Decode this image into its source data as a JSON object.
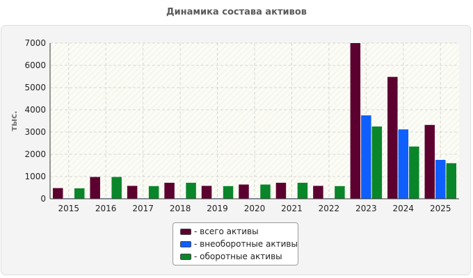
{
  "chart_data": {
    "type": "bar",
    "title": "Динамика состава активов",
    "ylabel": "тыс.",
    "xlabel": "",
    "ylim": [
      0,
      7000
    ],
    "yticks": [
      0,
      1000,
      2000,
      3000,
      4000,
      5000,
      6000,
      7000
    ],
    "grid": true,
    "legend_position": "bottom-center",
    "categories": [
      "2015",
      "2016",
      "2017",
      "2018",
      "2019",
      "2020",
      "2021",
      "2022",
      "2023",
      "2024",
      "2025"
    ],
    "series": [
      {
        "name": "- всего активы",
        "color": "#5c0030",
        "values": [
          480,
          980,
          580,
          720,
          580,
          640,
          720,
          580,
          7000,
          5480,
          3320
        ]
      },
      {
        "name": "- внеоборотные активы",
        "color": "#0f5fff",
        "values": [
          20,
          20,
          20,
          20,
          20,
          20,
          20,
          20,
          3750,
          3120,
          1750
        ]
      },
      {
        "name": "- оборотные активы",
        "color": "#0a862a",
        "values": [
          470,
          980,
          570,
          720,
          570,
          640,
          720,
          570,
          3250,
          2350,
          1600
        ]
      }
    ]
  }
}
